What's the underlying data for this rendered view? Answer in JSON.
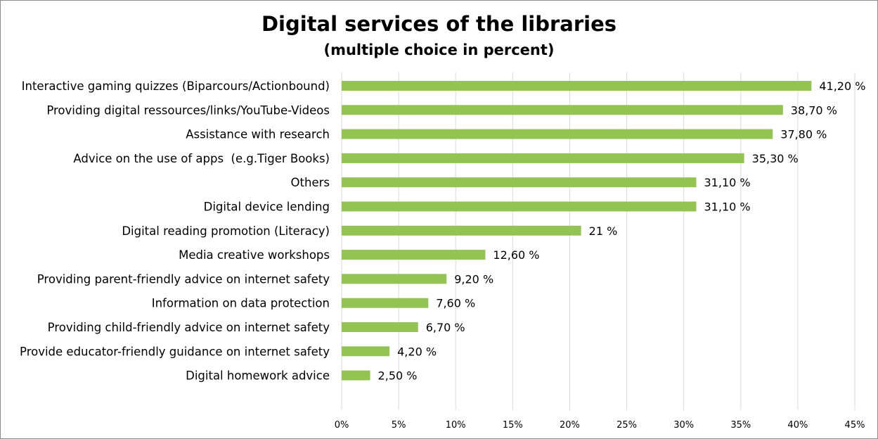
{
  "chart_data": {
    "type": "bar",
    "orientation": "horizontal",
    "title": "Digital services of the libraries",
    "subtitle": "(multiple choice in percent)",
    "categories": [
      "Interactive gaming quizzes (Biparcours/Actionbound)",
      "Providing digital ressources/links/YouTube-Videos",
      "Assistance with research",
      "Advice on the use of apps  (e.g.Tiger Books)",
      "Others",
      "Digital device lending",
      "Digital reading promotion (Literacy)",
      "Media creative workshops",
      "Providing parent-friendly advice on internet safety",
      "Information on data protection",
      "Providing child-friendly advice on internet safety",
      "Provide educator-friendly guidance on internet safety",
      "Digital homework advice"
    ],
    "values": [
      41.2,
      38.7,
      37.8,
      35.3,
      31.1,
      31.1,
      21,
      12.6,
      9.2,
      7.6,
      6.7,
      4.2,
      2.5
    ],
    "value_labels": [
      "41,20 %",
      "38,70 %",
      "37,80 %",
      "35,30 %",
      "31,10 %",
      "31,10 %",
      "21 %",
      "12,60 %",
      "9,20 %",
      "7,60 %",
      "6,70 %",
      "4,20 %",
      "2,50 %"
    ],
    "xlim": [
      0,
      45
    ],
    "x_ticks": [
      0,
      5,
      10,
      15,
      20,
      25,
      30,
      35,
      40,
      45
    ],
    "x_tick_labels": [
      "0%",
      "5%",
      "10%",
      "15%",
      "20%",
      "25%",
      "30%",
      "35%",
      "40%",
      "45%"
    ],
    "xlabel": "",
    "ylabel": "",
    "grid": "vertical",
    "legend": "none",
    "colors": {
      "bar": "#92c353",
      "grid": "#d9d9d9",
      "text": "#000000",
      "border": "#8c8c8c"
    }
  }
}
